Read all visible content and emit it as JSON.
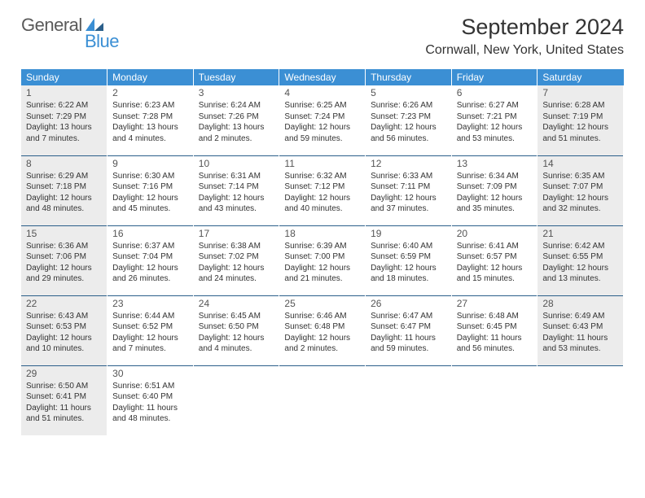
{
  "logo": {
    "text1": "General",
    "text2": "Blue"
  },
  "header": {
    "month": "September 2024",
    "location": "Cornwall, New York, United States"
  },
  "colors": {
    "header_bg": "#3b8fd4",
    "row_border": "#2b5f8a",
    "shade_bg": "#ececec",
    "text": "#333333"
  },
  "days": [
    "Sunday",
    "Monday",
    "Tuesday",
    "Wednesday",
    "Thursday",
    "Friday",
    "Saturday"
  ],
  "weeks": [
    [
      {
        "n": "1",
        "shade": true,
        "sr": "Sunrise: 6:22 AM",
        "ss": "Sunset: 7:29 PM",
        "dl1": "Daylight: 13 hours",
        "dl2": "and 7 minutes."
      },
      {
        "n": "2",
        "shade": false,
        "sr": "Sunrise: 6:23 AM",
        "ss": "Sunset: 7:28 PM",
        "dl1": "Daylight: 13 hours",
        "dl2": "and 4 minutes."
      },
      {
        "n": "3",
        "shade": false,
        "sr": "Sunrise: 6:24 AM",
        "ss": "Sunset: 7:26 PM",
        "dl1": "Daylight: 13 hours",
        "dl2": "and 2 minutes."
      },
      {
        "n": "4",
        "shade": false,
        "sr": "Sunrise: 6:25 AM",
        "ss": "Sunset: 7:24 PM",
        "dl1": "Daylight: 12 hours",
        "dl2": "and 59 minutes."
      },
      {
        "n": "5",
        "shade": false,
        "sr": "Sunrise: 6:26 AM",
        "ss": "Sunset: 7:23 PM",
        "dl1": "Daylight: 12 hours",
        "dl2": "and 56 minutes."
      },
      {
        "n": "6",
        "shade": false,
        "sr": "Sunrise: 6:27 AM",
        "ss": "Sunset: 7:21 PM",
        "dl1": "Daylight: 12 hours",
        "dl2": "and 53 minutes."
      },
      {
        "n": "7",
        "shade": true,
        "sr": "Sunrise: 6:28 AM",
        "ss": "Sunset: 7:19 PM",
        "dl1": "Daylight: 12 hours",
        "dl2": "and 51 minutes."
      }
    ],
    [
      {
        "n": "8",
        "shade": true,
        "sr": "Sunrise: 6:29 AM",
        "ss": "Sunset: 7:18 PM",
        "dl1": "Daylight: 12 hours",
        "dl2": "and 48 minutes."
      },
      {
        "n": "9",
        "shade": false,
        "sr": "Sunrise: 6:30 AM",
        "ss": "Sunset: 7:16 PM",
        "dl1": "Daylight: 12 hours",
        "dl2": "and 45 minutes."
      },
      {
        "n": "10",
        "shade": false,
        "sr": "Sunrise: 6:31 AM",
        "ss": "Sunset: 7:14 PM",
        "dl1": "Daylight: 12 hours",
        "dl2": "and 43 minutes."
      },
      {
        "n": "11",
        "shade": false,
        "sr": "Sunrise: 6:32 AM",
        "ss": "Sunset: 7:12 PM",
        "dl1": "Daylight: 12 hours",
        "dl2": "and 40 minutes."
      },
      {
        "n": "12",
        "shade": false,
        "sr": "Sunrise: 6:33 AM",
        "ss": "Sunset: 7:11 PM",
        "dl1": "Daylight: 12 hours",
        "dl2": "and 37 minutes."
      },
      {
        "n": "13",
        "shade": false,
        "sr": "Sunrise: 6:34 AM",
        "ss": "Sunset: 7:09 PM",
        "dl1": "Daylight: 12 hours",
        "dl2": "and 35 minutes."
      },
      {
        "n": "14",
        "shade": true,
        "sr": "Sunrise: 6:35 AM",
        "ss": "Sunset: 7:07 PM",
        "dl1": "Daylight: 12 hours",
        "dl2": "and 32 minutes."
      }
    ],
    [
      {
        "n": "15",
        "shade": true,
        "sr": "Sunrise: 6:36 AM",
        "ss": "Sunset: 7:06 PM",
        "dl1": "Daylight: 12 hours",
        "dl2": "and 29 minutes."
      },
      {
        "n": "16",
        "shade": false,
        "sr": "Sunrise: 6:37 AM",
        "ss": "Sunset: 7:04 PM",
        "dl1": "Daylight: 12 hours",
        "dl2": "and 26 minutes."
      },
      {
        "n": "17",
        "shade": false,
        "sr": "Sunrise: 6:38 AM",
        "ss": "Sunset: 7:02 PM",
        "dl1": "Daylight: 12 hours",
        "dl2": "and 24 minutes."
      },
      {
        "n": "18",
        "shade": false,
        "sr": "Sunrise: 6:39 AM",
        "ss": "Sunset: 7:00 PM",
        "dl1": "Daylight: 12 hours",
        "dl2": "and 21 minutes."
      },
      {
        "n": "19",
        "shade": false,
        "sr": "Sunrise: 6:40 AM",
        "ss": "Sunset: 6:59 PM",
        "dl1": "Daylight: 12 hours",
        "dl2": "and 18 minutes."
      },
      {
        "n": "20",
        "shade": false,
        "sr": "Sunrise: 6:41 AM",
        "ss": "Sunset: 6:57 PM",
        "dl1": "Daylight: 12 hours",
        "dl2": "and 15 minutes."
      },
      {
        "n": "21",
        "shade": true,
        "sr": "Sunrise: 6:42 AM",
        "ss": "Sunset: 6:55 PM",
        "dl1": "Daylight: 12 hours",
        "dl2": "and 13 minutes."
      }
    ],
    [
      {
        "n": "22",
        "shade": true,
        "sr": "Sunrise: 6:43 AM",
        "ss": "Sunset: 6:53 PM",
        "dl1": "Daylight: 12 hours",
        "dl2": "and 10 minutes."
      },
      {
        "n": "23",
        "shade": false,
        "sr": "Sunrise: 6:44 AM",
        "ss": "Sunset: 6:52 PM",
        "dl1": "Daylight: 12 hours",
        "dl2": "and 7 minutes."
      },
      {
        "n": "24",
        "shade": false,
        "sr": "Sunrise: 6:45 AM",
        "ss": "Sunset: 6:50 PM",
        "dl1": "Daylight: 12 hours",
        "dl2": "and 4 minutes."
      },
      {
        "n": "25",
        "shade": false,
        "sr": "Sunrise: 6:46 AM",
        "ss": "Sunset: 6:48 PM",
        "dl1": "Daylight: 12 hours",
        "dl2": "and 2 minutes."
      },
      {
        "n": "26",
        "shade": false,
        "sr": "Sunrise: 6:47 AM",
        "ss": "Sunset: 6:47 PM",
        "dl1": "Daylight: 11 hours",
        "dl2": "and 59 minutes."
      },
      {
        "n": "27",
        "shade": false,
        "sr": "Sunrise: 6:48 AM",
        "ss": "Sunset: 6:45 PM",
        "dl1": "Daylight: 11 hours",
        "dl2": "and 56 minutes."
      },
      {
        "n": "28",
        "shade": true,
        "sr": "Sunrise: 6:49 AM",
        "ss": "Sunset: 6:43 PM",
        "dl1": "Daylight: 11 hours",
        "dl2": "and 53 minutes."
      }
    ],
    [
      {
        "n": "29",
        "shade": true,
        "sr": "Sunrise: 6:50 AM",
        "ss": "Sunset: 6:41 PM",
        "dl1": "Daylight: 11 hours",
        "dl2": "and 51 minutes."
      },
      {
        "n": "30",
        "shade": false,
        "sr": "Sunrise: 6:51 AM",
        "ss": "Sunset: 6:40 PM",
        "dl1": "Daylight: 11 hours",
        "dl2": "and 48 minutes."
      },
      null,
      null,
      null,
      null,
      null
    ]
  ]
}
